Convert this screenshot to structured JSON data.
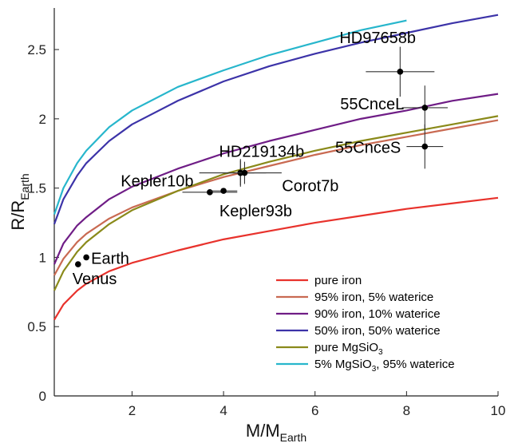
{
  "chart_data": {
    "type": "line",
    "xlabel": {
      "main": "M/M",
      "sub": "Earth"
    },
    "ylabel": {
      "main": "R/R",
      "sub": "Earth"
    },
    "xlim": [
      0.3,
      10
    ],
    "ylim": [
      0,
      2.8
    ],
    "xticks": [
      2,
      4,
      6,
      8,
      10
    ],
    "yticks": [
      0,
      0.5,
      1,
      1.5,
      2,
      2.5
    ],
    "grid": false,
    "legend_position": "bottom-right",
    "series": [
      {
        "name": "pure iron",
        "color": "#e8322c",
        "x": [
          0.3,
          0.5,
          0.8,
          1,
          1.5,
          2,
          3,
          4,
          5,
          6,
          7,
          8,
          9,
          10
        ],
        "y": [
          0.55,
          0.66,
          0.76,
          0.81,
          0.9,
          0.96,
          1.05,
          1.13,
          1.19,
          1.25,
          1.3,
          1.35,
          1.39,
          1.43
        ]
      },
      {
        "name": "95% iron, 5% waterice",
        "color": "#c96a52",
        "x": [
          0.3,
          0.5,
          0.8,
          1,
          1.5,
          2,
          3,
          4,
          5,
          6,
          7,
          8,
          9,
          10
        ],
        "y": [
          0.87,
          0.99,
          1.11,
          1.17,
          1.28,
          1.36,
          1.48,
          1.58,
          1.66,
          1.74,
          1.81,
          1.87,
          1.93,
          1.99
        ]
      },
      {
        "name": "90% iron, 10% waterice",
        "color": "#6f1d86",
        "x": [
          0.3,
          0.5,
          0.8,
          1,
          1.5,
          2,
          3,
          4,
          5,
          6,
          7,
          8,
          9,
          10
        ],
        "y": [
          0.95,
          1.1,
          1.23,
          1.29,
          1.42,
          1.51,
          1.64,
          1.75,
          1.84,
          1.92,
          2.0,
          2.06,
          2.13,
          2.18
        ]
      },
      {
        "name": "50% iron, 50% waterice",
        "color": "#3c33a8",
        "x": [
          0.3,
          0.5,
          0.8,
          1,
          1.5,
          2,
          3,
          4,
          5,
          6,
          7,
          8,
          9,
          10
        ],
        "y": [
          1.24,
          1.42,
          1.59,
          1.68,
          1.84,
          1.96,
          2.13,
          2.27,
          2.38,
          2.47,
          2.55,
          2.62,
          2.69,
          2.75
        ]
      },
      {
        "name": "pure MgSiO3",
        "display": {
          "main": "pure MgSiO",
          "sub": "3"
        },
        "color": "#8a8a1a",
        "x": [
          0.3,
          0.5,
          0.8,
          1,
          1.5,
          2,
          3,
          4,
          5,
          6,
          7,
          8,
          9,
          10
        ],
        "y": [
          0.76,
          0.9,
          1.04,
          1.11,
          1.24,
          1.34,
          1.48,
          1.6,
          1.69,
          1.77,
          1.84,
          1.9,
          1.96,
          2.02
        ]
      },
      {
        "name": "5% MgSiO3, 95% waterice",
        "display": {
          "main": "5% MgSiO",
          "sub": "3",
          "rest": ", 95% waterice"
        },
        "color": "#27b6cc",
        "x": [
          0.3,
          0.5,
          0.8,
          1,
          1.5,
          2,
          3,
          4,
          5,
          6,
          7,
          8
        ],
        "y": [
          1.31,
          1.5,
          1.68,
          1.77,
          1.94,
          2.06,
          2.23,
          2.35,
          2.46,
          2.55,
          2.64,
          2.71
        ]
      }
    ],
    "points": [
      {
        "label": "Venus",
        "x": 0.82,
        "y": 0.95,
        "label_anchor": "below"
      },
      {
        "label": "Earth",
        "x": 1.0,
        "y": 1.0,
        "label_anchor": "right"
      },
      {
        "label": "Kepler10b",
        "x": 4.37,
        "y": 1.61,
        "label_anchor": "left",
        "xerr": 0.9,
        "yerr": 0.1
      },
      {
        "label": "Corot7b",
        "x": 4.37,
        "y": 1.61,
        "label_anchor": "right-below",
        "xerr": 0.3,
        "yerr": 0.09
      },
      {
        "label": "Kepler93b",
        "x": 3.7,
        "y": 1.47,
        "label_anchor": "below",
        "xerr": 0.6,
        "yerr": 0.02
      },
      {
        "label": "",
        "x": 4.0,
        "y": 1.48,
        "xerr": 0.3,
        "yerr": 0.02
      },
      {
        "label": "HD219134b",
        "x": 4.46,
        "y": 1.61,
        "label_anchor": "above",
        "xerr": 0.47,
        "yerr": 0.08
      },
      {
        "label": "55CnceS",
        "x": 8.4,
        "y": 1.8,
        "label_anchor": "above-left",
        "xerr": 0.4,
        "yerr": 0.16
      },
      {
        "label": "55CnceL",
        "x": 8.4,
        "y": 2.08,
        "label_anchor": "above-left",
        "xerr": 0.5,
        "yerr": 0.16
      },
      {
        "label": "HD97658b",
        "x": 7.86,
        "y": 2.34,
        "label_anchor": "above",
        "xerr": 0.75,
        "yerr": 0.18
      }
    ]
  }
}
